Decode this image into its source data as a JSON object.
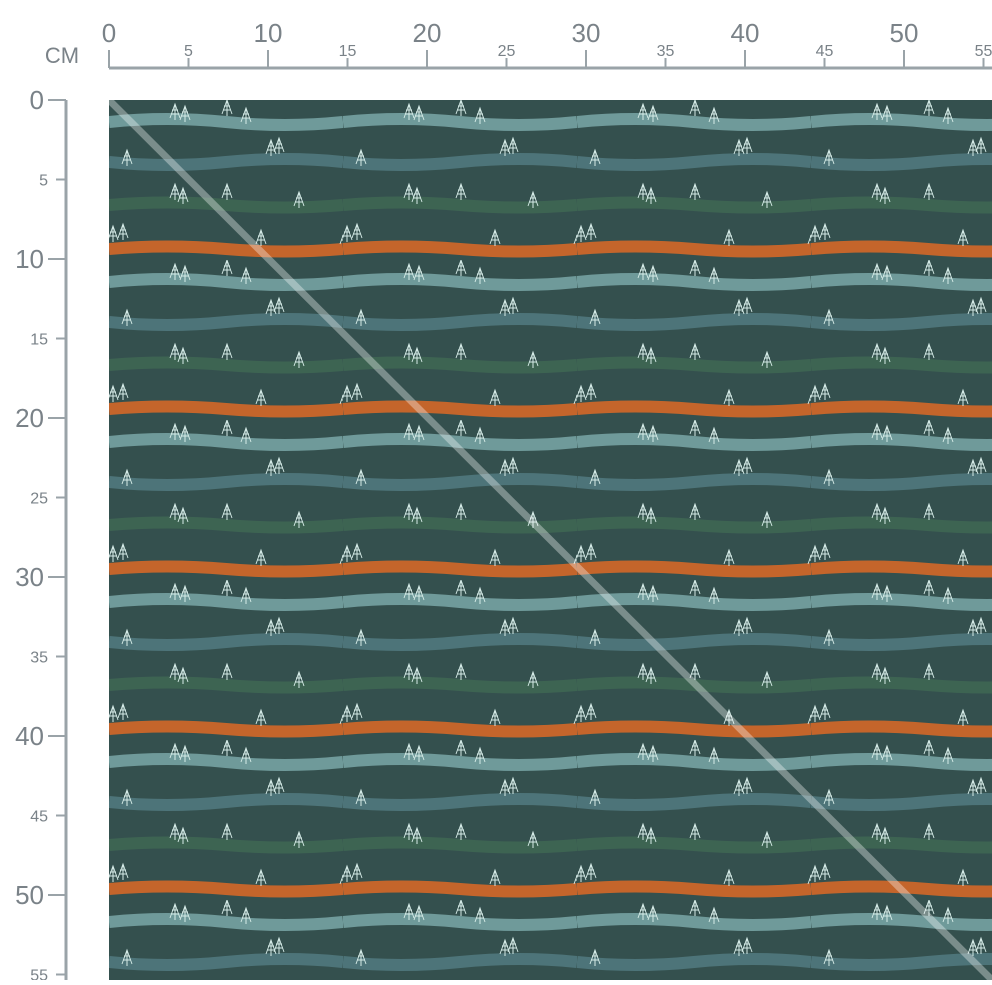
{
  "ruler": {
    "unit": "CM",
    "top": [
      "0",
      "5",
      "10",
      "15",
      "20",
      "25",
      "30",
      "35",
      "40",
      "45",
      "50",
      "55"
    ],
    "left": [
      "0",
      "5",
      "10",
      "15",
      "20",
      "25",
      "30",
      "35",
      "40",
      "45",
      "50",
      "55"
    ]
  }
}
